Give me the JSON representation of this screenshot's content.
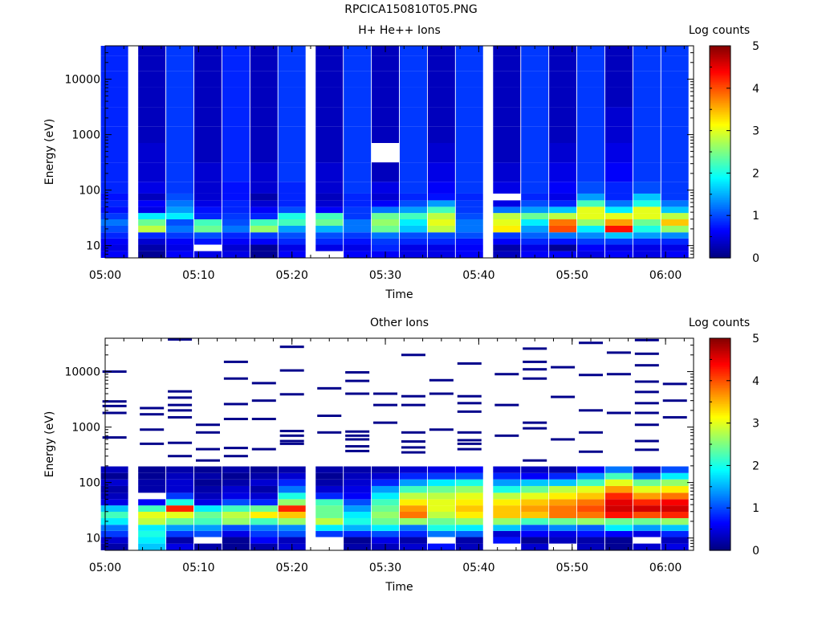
{
  "page": {
    "title": "RPCICA150810T05.PNG"
  },
  "chart_data": [
    {
      "type": "heatmap",
      "title": "H+ He++ Ions",
      "xlabel": "Time",
      "ylabel": "Energy (eV)",
      "colorbar_label": "Log counts",
      "colorbar_ticks": [
        "0",
        "1",
        "2",
        "3",
        "4",
        "5"
      ],
      "colorbar_range": [
        0,
        5
      ],
      "x_ticks": [
        "05:00",
        "05:10",
        "05:20",
        "05:30",
        "05:40",
        "05:50",
        "06:00"
      ],
      "y_ticks": [
        "10",
        "100",
        "1000",
        "10000"
      ],
      "y_scale": "log",
      "ylim": [
        6,
        40000
      ],
      "time_columns": [
        "05:01",
        "05:05",
        "05:08",
        "05:11",
        "05:14",
        "05:17",
        "05:20",
        "05:24",
        "05:27",
        "05:30",
        "05:33",
        "05:36",
        "05:39",
        "05:43",
        "05:46",
        "05:49",
        "05:52",
        "05:55",
        "05:58",
        "06:01"
      ],
      "energy_rows_eV": [
        7,
        9,
        12,
        15,
        20,
        26,
        34,
        44,
        57,
        75,
        100,
        200,
        500,
        1000,
        2000,
        5000,
        10000,
        20000,
        35000
      ],
      "log_counts": [
        [
          0.6,
          0.1,
          0.6,
          0.5,
          0.5,
          0.1,
          0.6,
          null,
          0.6,
          0.6,
          0.5,
          0.5,
          0.6,
          0.3,
          0.6,
          0.6,
          0.5,
          0.6,
          0.5,
          0.6
        ],
        [
          0.5,
          0.2,
          0.5,
          null,
          0.4,
          0.1,
          0.5,
          0.5,
          0.5,
          0.8,
          0.5,
          0.5,
          0.6,
          0.2,
          0.5,
          0.1,
          0.6,
          0.5,
          0.5,
          0.5
        ],
        [
          0.6,
          0.4,
          0.6,
          0.7,
          0.6,
          0.6,
          0.8,
          0.8,
          0.7,
          0.9,
          0.8,
          0.8,
          0.7,
          0.6,
          0.8,
          0.7,
          0.9,
          0.9,
          0.8,
          0.8
        ],
        [
          0.8,
          0.8,
          0.9,
          1.0,
          0.8,
          0.9,
          1.0,
          1.0,
          0.9,
          1.2,
          1.0,
          1.0,
          1.0,
          0.9,
          1.1,
          1.2,
          1.3,
          1.6,
          1.4,
          1.3
        ],
        [
          1.0,
          2.8,
          1.2,
          2.4,
          1.2,
          2.6,
          1.4,
          1.5,
          1.2,
          2.4,
          1.6,
          2.8,
          1.2,
          3.2,
          1.4,
          4.0,
          1.8,
          4.3,
          2.0,
          2.6
        ],
        [
          1.2,
          2.4,
          1.0,
          2.2,
          1.0,
          2.2,
          2.2,
          2.4,
          1.2,
          2.6,
          1.8,
          3.0,
          1.2,
          3.0,
          1.8,
          3.8,
          2.6,
          3.6,
          2.4,
          3.4
        ],
        [
          0.9,
          1.8,
          1.8,
          0.8,
          0.9,
          0.8,
          2.0,
          2.2,
          0.9,
          2.4,
          2.2,
          2.8,
          1.0,
          2.8,
          2.4,
          2.8,
          3.0,
          3.0,
          3.0,
          2.8
        ],
        [
          0.7,
          0.5,
          1.4,
          0.7,
          0.8,
          0.6,
          1.0,
          0.6,
          0.9,
          1.2,
          1.4,
          2.2,
          0.9,
          1.2,
          1.4,
          1.6,
          3.0,
          1.8,
          3.0,
          1.6
        ],
        [
          0.8,
          0.6,
          1.2,
          0.5,
          0.8,
          0.4,
          0.8,
          0.4,
          0.8,
          0.6,
          1.0,
          1.4,
          0.9,
          0.5,
          1.0,
          0.8,
          2.2,
          1.2,
          2.0,
          1.2
        ],
        [
          0.7,
          0.3,
          1.0,
          0.4,
          0.7,
          0.2,
          0.8,
          0.3,
          0.8,
          0.4,
          0.8,
          0.7,
          0.8,
          null,
          0.8,
          0.5,
          1.4,
          0.8,
          1.6,
          0.9
        ],
        [
          0.8,
          0.5,
          0.9,
          0.4,
          0.7,
          0.4,
          0.8,
          0.4,
          0.9,
          0.5,
          0.9,
          0.6,
          0.9,
          0.5,
          0.9,
          0.6,
          1.0,
          0.8,
          1.0,
          0.9
        ],
        [
          0.8,
          0.4,
          0.9,
          0.4,
          0.8,
          0.4,
          0.9,
          0.4,
          0.9,
          0.3,
          0.9,
          0.5,
          0.9,
          0.4,
          0.9,
          0.5,
          0.9,
          0.6,
          0.9,
          0.9
        ],
        [
          0.8,
          0.4,
          0.9,
          0.3,
          0.8,
          0.3,
          0.9,
          0.3,
          0.9,
          null,
          0.9,
          0.4,
          0.9,
          0.3,
          0.9,
          0.4,
          0.9,
          0.5,
          0.9,
          0.9
        ],
        [
          0.8,
          0.3,
          0.9,
          0.3,
          0.8,
          0.3,
          0.9,
          0.3,
          0.9,
          0.3,
          0.9,
          0.3,
          0.9,
          0.3,
          0.9,
          0.3,
          0.9,
          0.4,
          0.9,
          0.9
        ],
        [
          0.8,
          0.3,
          0.9,
          0.3,
          0.8,
          0.3,
          0.9,
          0.3,
          0.9,
          0.3,
          0.9,
          0.3,
          0.9,
          0.3,
          0.9,
          0.3,
          0.9,
          0.4,
          0.9,
          0.9
        ],
        [
          0.8,
          0.3,
          0.9,
          0.3,
          0.8,
          0.3,
          0.9,
          0.3,
          0.9,
          0.3,
          0.9,
          0.3,
          0.9,
          0.3,
          0.9,
          0.3,
          0.9,
          0.3,
          0.9,
          0.9
        ],
        [
          0.8,
          0.3,
          0.9,
          0.3,
          0.8,
          0.3,
          0.9,
          0.3,
          0.9,
          0.3,
          0.9,
          0.3,
          0.9,
          0.3,
          0.9,
          0.3,
          0.9,
          0.3,
          0.9,
          0.9
        ],
        [
          0.8,
          0.3,
          0.9,
          0.3,
          0.8,
          0.3,
          0.9,
          0.3,
          0.9,
          0.3,
          0.9,
          0.3,
          0.9,
          0.3,
          0.9,
          0.3,
          0.9,
          0.3,
          0.9,
          0.9
        ],
        [
          0.8,
          0.3,
          0.9,
          0.3,
          0.8,
          0.3,
          0.9,
          0.3,
          0.9,
          0.3,
          0.9,
          0.3,
          0.9,
          0.3,
          0.9,
          0.3,
          0.9,
          0.3,
          0.9,
          0.9
        ]
      ]
    },
    {
      "type": "heatmap",
      "title": "Other Ions",
      "xlabel": "Time",
      "ylabel": "Energy (eV)",
      "colorbar_label": "Log counts",
      "colorbar_ticks": [
        "0",
        "1",
        "2",
        "3",
        "4",
        "5"
      ],
      "colorbar_range": [
        0,
        5
      ],
      "x_ticks": [
        "05:00",
        "05:10",
        "05:20",
        "05:30",
        "05:40",
        "05:50",
        "06:00"
      ],
      "y_ticks": [
        "10",
        "100",
        "1000",
        "10000"
      ],
      "y_scale": "log",
      "ylim": [
        6,
        40000
      ],
      "time_columns": [
        "05:01",
        "05:05",
        "05:08",
        "05:11",
        "05:14",
        "05:17",
        "05:20",
        "05:24",
        "05:27",
        "05:30",
        "05:33",
        "05:36",
        "05:39",
        "05:43",
        "05:46",
        "05:49",
        "05:52",
        "05:55",
        "05:58",
        "06:01"
      ],
      "energy_rows_eV": [
        7,
        9,
        12,
        15,
        20,
        26,
        34,
        44,
        57,
        75,
        100,
        130,
        170
      ],
      "log_counts": [
        [
          0.2,
          1.6,
          0.5,
          0.2,
          0.1,
          0.2,
          0.4,
          null,
          0.2,
          0.3,
          0.4,
          0.7,
          0.3,
          null,
          0.4,
          null,
          0.3,
          0.1,
          0.4,
          0.5
        ],
        [
          0.4,
          1.8,
          0.2,
          null,
          0.1,
          0.6,
          0.3,
          null,
          0.1,
          0.5,
          0.2,
          null,
          0.2,
          0.7,
          0.1,
          0.3,
          0.2,
          0.1,
          null,
          0.3
        ],
        [
          0.9,
          2.0,
          0.9,
          1.0,
          0.5,
          0.9,
          1.0,
          0.9,
          0.8,
          1.0,
          0.8,
          1.2,
          1.1,
          0.4,
          0.6,
          0.5,
          0.7,
          0.6,
          0.5,
          0.8
        ],
        [
          1.2,
          1.8,
          1.4,
          1.4,
          1.0,
          1.2,
          1.3,
          1.8,
          1.5,
          1.8,
          1.2,
          2.0,
          1.8,
          1.6,
          1.0,
          1.3,
          1.1,
          1.8,
          1.4,
          1.6
        ],
        [
          1.8,
          2.8,
          2.4,
          2.2,
          2.6,
          2.2,
          2.6,
          2.8,
          2.0,
          2.4,
          2.6,
          2.4,
          2.6,
          2.6,
          2.2,
          2.4,
          2.6,
          2.4,
          2.4,
          2.6
        ],
        [
          2.2,
          3.0,
          3.0,
          2.4,
          2.8,
          3.2,
          3.4,
          2.4,
          1.8,
          2.6,
          3.8,
          2.8,
          3.2,
          3.4,
          3.4,
          3.8,
          3.8,
          4.3,
          4.0,
          4.2
        ],
        [
          1.6,
          2.2,
          4.2,
          1.8,
          2.2,
          2.4,
          4.2,
          2.4,
          1.4,
          2.4,
          3.6,
          3.0,
          3.4,
          3.4,
          3.6,
          3.8,
          4.0,
          4.6,
          4.6,
          4.6
        ],
        [
          0.5,
          0.6,
          2.0,
          0.5,
          1.0,
          0.8,
          2.6,
          2.2,
          1.0,
          2.2,
          3.2,
          3.0,
          3.2,
          3.2,
          3.4,
          3.6,
          3.8,
          4.5,
          4.2,
          4.4
        ],
        [
          0.3,
          null,
          0.9,
          0.3,
          0.5,
          0.4,
          2.0,
          0.8,
          0.6,
          1.8,
          2.8,
          2.8,
          3.0,
          2.8,
          3.0,
          3.2,
          3.4,
          4.2,
          3.6,
          3.8
        ],
        [
          0.2,
          0.2,
          0.4,
          0.2,
          0.4,
          0.2,
          1.2,
          0.4,
          0.5,
          1.4,
          2.2,
          2.4,
          2.6,
          2.0,
          2.4,
          2.8,
          3.0,
          3.6,
          3.0,
          3.2
        ],
        [
          0.4,
          0.2,
          0.4,
          0.1,
          0.2,
          0.4,
          0.8,
          0.2,
          0.4,
          0.8,
          1.4,
          1.8,
          2.0,
          1.4,
          1.6,
          1.6,
          2.2,
          3.0,
          2.4,
          2.6
        ],
        [
          0.1,
          0.1,
          0.3,
          0.2,
          0.1,
          0.2,
          0.4,
          0.1,
          0.3,
          0.4,
          0.8,
          0.9,
          1.0,
          0.8,
          0.6,
          0.8,
          1.4,
          2.2,
          1.2,
          1.8
        ],
        [
          0.3,
          0.1,
          0.2,
          0.1,
          0.2,
          0.1,
          0.2,
          0.2,
          0.2,
          0.2,
          0.4,
          0.5,
          0.6,
          0.4,
          0.3,
          0.2,
          0.6,
          1.2,
          0.4,
          1.0
        ]
      ],
      "sparse_high_energy_lines_eV": [
        [
          10000,
          2900,
          2400,
          1800,
          650
        ],
        [
          2200,
          1700,
          900,
          500
        ],
        [
          38000,
          4400,
          3400,
          2500,
          2000,
          1500,
          520,
          300
        ],
        [
          1100,
          800,
          400,
          250
        ],
        [
          15000,
          7500,
          2600,
          1400,
          420,
          300
        ],
        [
          6200,
          3000,
          1400,
          400
        ],
        [
          28000,
          10500,
          3900,
          850,
          700,
          560,
          500
        ],
        [
          5000,
          1600,
          800
        ],
        [
          9700,
          6800,
          4000,
          830,
          700,
          600,
          450,
          370
        ],
        [
          4000,
          2500,
          1200
        ],
        [
          20000,
          3600,
          2500,
          800,
          550,
          430,
          350
        ],
        [
          7000,
          4000,
          900
        ],
        [
          14000,
          3600,
          2700,
          1900,
          800,
          580,
          500,
          400
        ],
        [
          9000,
          2500,
          700
        ],
        [
          26000,
          15000,
          11000,
          7500,
          1200,
          950,
          250
        ],
        [
          12000,
          3500,
          600
        ],
        [
          33000,
          8700,
          2000,
          800,
          360
        ],
        [
          22000,
          9000,
          1800
        ],
        [
          37000,
          21000,
          13000,
          6600,
          4300,
          2700,
          1800,
          1100,
          560,
          390
        ],
        [
          6000,
          3000,
          1500
        ]
      ]
    }
  ]
}
